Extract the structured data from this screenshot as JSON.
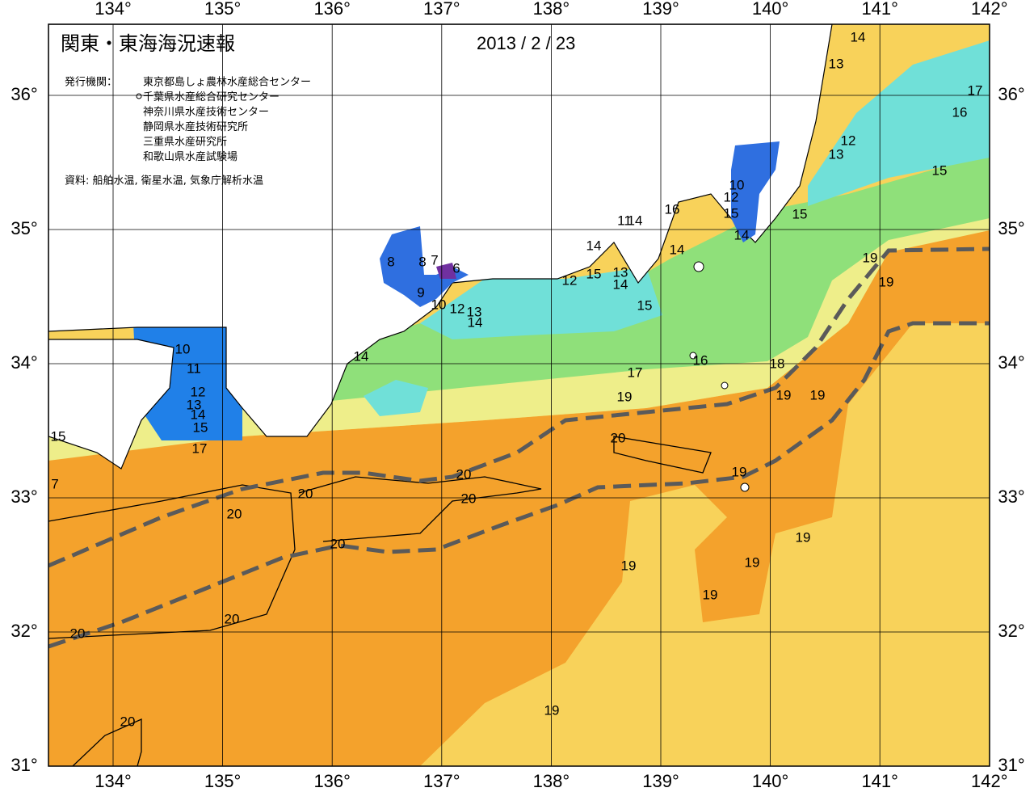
{
  "header": {
    "title": "関東・東海海況速報",
    "date": "2013 / 2 / 23"
  },
  "agencies": {
    "label": "発行機関：",
    "items": [
      "東京都島しょ農林水産総合センター",
      "千葉県水産総合研究センター",
      "神奈川県水産技術センター",
      "静岡県水産技術研究所",
      "三重県水産研究所",
      "和歌山県水産試験場"
    ]
  },
  "source": "資料: 船舶水温, 衛星水温, 気象庁解析水温",
  "map": {
    "lon_ticks": [
      {
        "value": 134,
        "label": "134°"
      },
      {
        "value": 135,
        "label": "135°"
      },
      {
        "value": 136,
        "label": "136°"
      },
      {
        "value": 137,
        "label": "137°"
      },
      {
        "value": 138,
        "label": "138°"
      },
      {
        "value": 139,
        "label": "139°"
      },
      {
        "value": 140,
        "label": "140°"
      },
      {
        "value": 141,
        "label": "141°"
      },
      {
        "value": 142,
        "label": "142°"
      }
    ],
    "lat_ticks": [
      {
        "value": 36,
        "label": "36°"
      },
      {
        "value": 35,
        "label": "35°"
      },
      {
        "value": 34,
        "label": "34°"
      },
      {
        "value": 33,
        "label": "33°"
      },
      {
        "value": 32,
        "label": "32°"
      },
      {
        "value": 31,
        "label": "31°"
      }
    ],
    "contour_labels": [
      14,
      13,
      17,
      16,
      12,
      13,
      15,
      10,
      12,
      15,
      14,
      16,
      11,
      14,
      15,
      14,
      15,
      13,
      14,
      12,
      14,
      15,
      8,
      8,
      7,
      6,
      9,
      10,
      12,
      13,
      14,
      19,
      19,
      14,
      16,
      18,
      17,
      19,
      19,
      19,
      10,
      11,
      12,
      13,
      14,
      15,
      17,
      15,
      7,
      20,
      19,
      20,
      20,
      20,
      20,
      20,
      19,
      19,
      19,
      19,
      20,
      20,
      20,
      19
    ]
  }
}
